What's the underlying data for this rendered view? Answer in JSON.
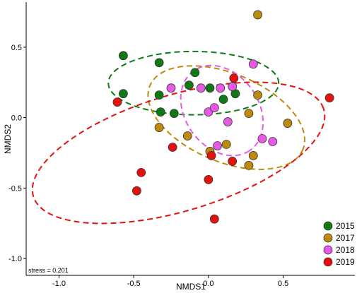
{
  "chart_data": {
    "type": "scatter",
    "title": "",
    "xlabel": "NMDS1",
    "ylabel": "NMDS2",
    "xlim": [
      -1.22,
      0.98
    ],
    "ylim": [
      -1.12,
      0.82
    ],
    "x_ticks": [
      -1.0,
      -0.5,
      0.0,
      0.5
    ],
    "x_tick_labels": [
      "-1.0",
      "-0.5",
      "0.0",
      "0.5"
    ],
    "y_ticks": [
      -1.0,
      -0.5,
      0.0,
      0.5
    ],
    "y_tick_labels": [
      "-1.0",
      "-0.5",
      "0.0",
      "0.5"
    ],
    "grid": false,
    "legend_position": "bottom-right",
    "annotation": "stress = 0.201",
    "series": [
      {
        "name": "2015",
        "color": "#0f7a14",
        "points": [
          [
            -0.57,
            0.44
          ],
          [
            -0.33,
            0.39
          ],
          [
            -0.57,
            0.17
          ],
          [
            -0.33,
            0.16
          ],
          [
            -0.32,
            0.04
          ],
          [
            -0.23,
            0.03
          ],
          [
            -0.13,
            0.23
          ],
          [
            -0.09,
            0.32
          ],
          [
            0.01,
            0.21
          ],
          [
            0.1,
            0.13
          ],
          [
            0.18,
            0.17
          ]
        ],
        "ellipse": {
          "cx": -0.1,
          "cy": 0.245,
          "rx": 0.57,
          "ry": 0.225,
          "angle": 0
        }
      },
      {
        "name": "2017",
        "color": "#bd8a0b",
        "points": [
          [
            0.33,
            0.73
          ],
          [
            -0.33,
            -0.07
          ],
          [
            -0.14,
            -0.13
          ],
          [
            0.01,
            -0.24
          ],
          [
            0.12,
            -0.19
          ],
          [
            0.27,
            -0.34
          ],
          [
            0.3,
            -0.27
          ],
          [
            0.27,
            0.03
          ],
          [
            0.33,
            0.16
          ],
          [
            0.53,
            -0.04
          ]
        ],
        "ellipse": {
          "cx": 0.12,
          "cy": 0.0,
          "rx": 0.56,
          "ry": 0.31,
          "angle": -25
        }
      },
      {
        "name": "2018",
        "color": "#e75ae6",
        "points": [
          [
            -0.25,
            0.21
          ],
          [
            -0.05,
            0.21
          ],
          [
            0.0,
            0.04
          ],
          [
            0.04,
            0.07
          ],
          [
            0.08,
            0.21
          ],
          [
            0.16,
            0.22
          ],
          [
            0.13,
            -0.03
          ],
          [
            0.06,
            -0.2
          ],
          [
            0.3,
            0.38
          ],
          [
            0.36,
            -0.15
          ],
          [
            0.43,
            -0.17
          ]
        ],
        "ellipse": {
          "cx": 0.09,
          "cy": 0.05,
          "rx": 0.34,
          "ry": 0.25,
          "angle": -60
        }
      },
      {
        "name": "2019",
        "color": "#e5110f",
        "points": [
          [
            -0.61,
            0.11
          ],
          [
            -0.45,
            -0.39
          ],
          [
            -0.48,
            -0.52
          ],
          [
            -0.24,
            -0.21
          ],
          [
            0.02,
            -0.27
          ],
          [
            0.0,
            -0.44
          ],
          [
            0.04,
            -0.72
          ],
          [
            0.16,
            -0.31
          ],
          [
            0.17,
            0.28
          ],
          [
            0.81,
            0.14
          ]
        ],
        "ellipse": {
          "cx": -0.2,
          "cy": -0.25,
          "rx": 1.02,
          "ry": 0.41,
          "angle": 18
        }
      }
    ]
  }
}
